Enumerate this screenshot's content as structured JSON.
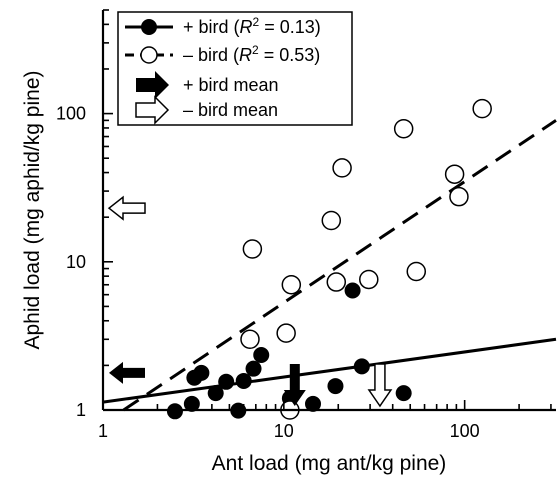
{
  "chart_data": {
    "type": "scatter",
    "xlabel": "Ant load (mg ant/kg pine)",
    "ylabel": "Aphid load (mg aphid/kg pine)",
    "x_scale": "log",
    "y_scale": "log",
    "xlim": [
      1,
      320
    ],
    "ylim": [
      1,
      500
    ],
    "x_ticks": [
      1,
      10,
      100
    ],
    "x_tick_labels": [
      "1",
      "10",
      "100"
    ],
    "y_ticks": [
      1,
      10,
      100
    ],
    "y_tick_labels": [
      "1",
      "10",
      "100"
    ],
    "grid": false,
    "legend_position": "top-left",
    "legend": [
      {
        "id": "plus",
        "label_prefix": "+ bird (",
        "r2_symbol": "R",
        "r2_sup": "2",
        "label_suffix": " = 0.13)"
      },
      {
        "id": "minus",
        "label_prefix": "– bird (",
        "r2_symbol": "R",
        "r2_sup": "2",
        "label_suffix": " = 0.53)"
      },
      {
        "id": "plus_mean",
        "label": "+ bird mean"
      },
      {
        "id": "minus_mean",
        "label": "– bird mean"
      }
    ],
    "series": [
      {
        "id": "plus",
        "marker": "filled-circle",
        "line": "solid",
        "color": "#000000",
        "x": [
          2.5,
          3.1,
          3.2,
          3.5,
          4.2,
          4.8,
          5.6,
          6.0,
          6.8,
          7.5,
          10.8,
          14.5,
          19.3,
          24.0,
          27.0,
          46.0
        ],
        "y": [
          0.98,
          1.1,
          1.65,
          1.78,
          1.3,
          1.55,
          0.99,
          1.57,
          1.9,
          2.35,
          1.2,
          1.1,
          1.45,
          6.4,
          1.97,
          1.3
        ],
        "trend": {
          "x": [
            1,
            320
          ],
          "y": [
            1.13,
            3.0
          ]
        }
      },
      {
        "id": "minus",
        "marker": "open-circle",
        "line": "dashed",
        "color": "#000000",
        "x": [
          6.5,
          6.7,
          10.3,
          10.8,
          11.0,
          18.3,
          19.5,
          21.0,
          29.5,
          46.0,
          54.0,
          88.0,
          93.0,
          125.0
        ],
        "y": [
          3.0,
          12.2,
          3.3,
          1.0,
          7.0,
          19.0,
          7.3,
          43.0,
          7.6,
          79.0,
          8.6,
          39.0,
          27.5,
          108.0
        ],
        "trend": {
          "x": [
            1.3,
            320
          ],
          "y": [
            1.0,
            90.0
          ]
        }
      }
    ],
    "means": [
      {
        "id": "plus_mean",
        "style": "filled-arrow",
        "axis": "y",
        "value": 1.78
      },
      {
        "id": "minus_mean",
        "style": "open-arrow",
        "axis": "y",
        "value": 23.0
      },
      {
        "id": "plus_mean",
        "style": "filled-arrow",
        "axis": "x",
        "value": 11.5
      },
      {
        "id": "minus_mean",
        "style": "open-arrow",
        "axis": "x",
        "value": 34.0
      }
    ]
  }
}
